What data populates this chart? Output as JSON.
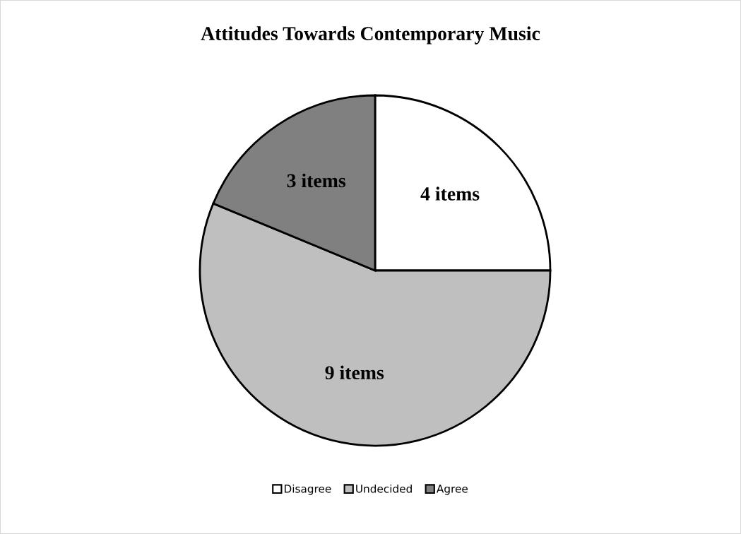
{
  "chart_data": {
    "type": "pie",
    "title": "Attitudes Towards Contemporary Music",
    "categories": [
      "Disagree",
      "Undecided",
      "Agree"
    ],
    "values": [
      4,
      9,
      3
    ],
    "colors": [
      "#ffffff",
      "#bfbfbf",
      "#808080"
    ],
    "value_labels": [
      "4 items",
      "9 items",
      "3 items"
    ],
    "legend": "bottom"
  }
}
